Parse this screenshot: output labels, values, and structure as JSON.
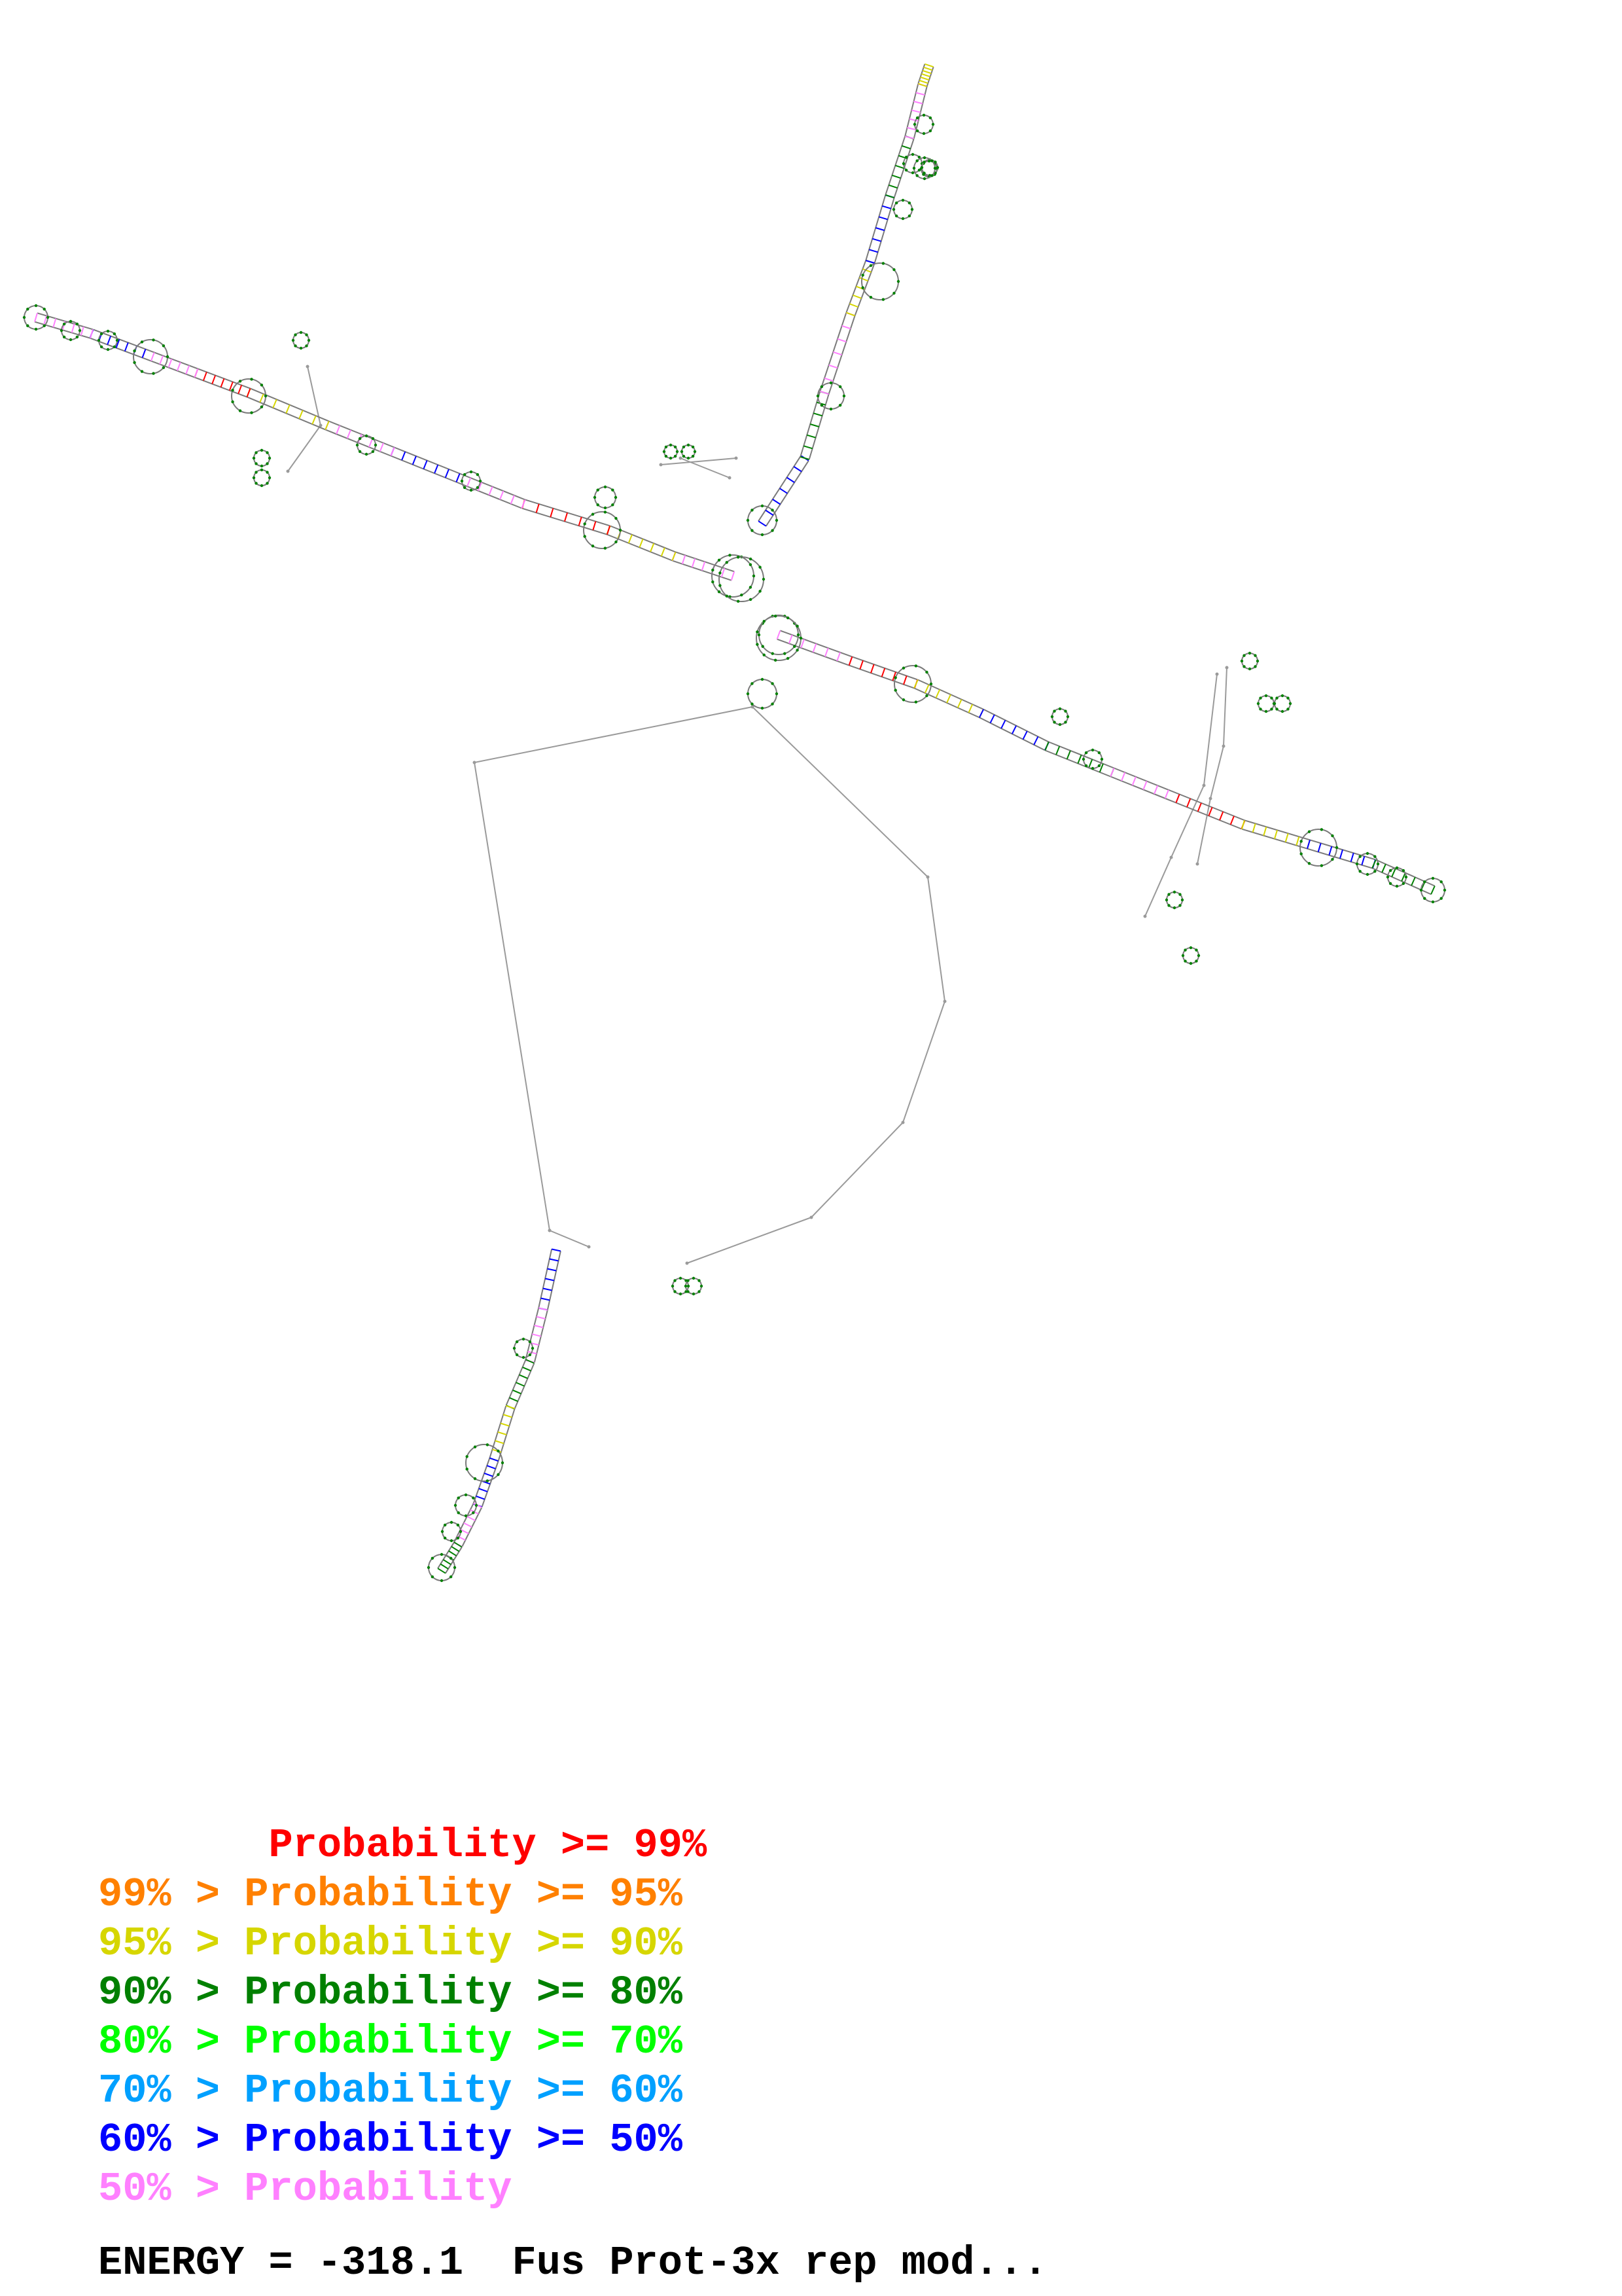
{
  "legend": {
    "rows": [
      {
        "text": "       Probability >= 99%",
        "color": "#ff0000"
      },
      {
        "text": "99% > Probability >= 95%",
        "color": "#ff8000"
      },
      {
        "text": "95% > Probability >= 90%",
        "color": "#d6d600"
      },
      {
        "text": "90% > Probability >= 80%",
        "color": "#008000"
      },
      {
        "text": "80% > Probability >= 70%",
        "color": "#00ff00"
      },
      {
        "text": "70% > Probability >= 60%",
        "color": "#00a0ff"
      },
      {
        "text": "60% > Probability >= 50%",
        "color": "#0000ff"
      },
      {
        "text": "50% > Probability",
        "color": "#ff80ff"
      }
    ]
  },
  "energy_line": "ENERGY = -318.1  Fus Prot-3x rep mod...",
  "colors": {
    "backbone": "#9a9a9a",
    "pair_high": "#ff0000",
    "pair_mid": "#d6d600",
    "pair_low": "#ff80ff",
    "pair_green": "#008000",
    "pair_blue": "#0000ff",
    "nucleotide": "#7a7a7a"
  },
  "icons": {
    "structure": "rna-secondary-structure-graph"
  }
}
